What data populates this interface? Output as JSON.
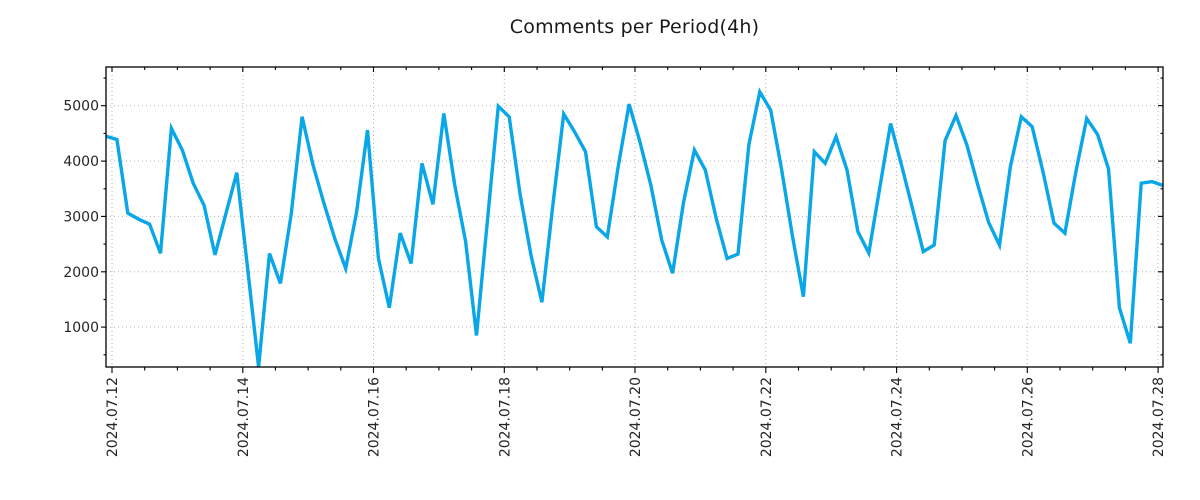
{
  "title": "Comments per Period(4h)",
  "chart_data": {
    "type": "line",
    "title": "Comments per Period(4h)",
    "xlabel": "",
    "ylabel": "",
    "legend": "none",
    "grid": {
      "show": true,
      "style": "dotted",
      "color": "#b3b3b3"
    },
    "x_tick_labels": [
      "2024.07.12",
      "2024.07.14",
      "2024.07.16",
      "2024.07.18",
      "2024.07.20",
      "2024.07.22",
      "2024.07.24",
      "2024.07.26",
      "2024.07.28"
    ],
    "x_axis": {
      "period_hours": 4,
      "points_per_major_tick": 12,
      "first_tick_index": 0.55,
      "minor_step_indices": 3
    },
    "y_axis": {
      "major_ticks": [
        1000,
        2000,
        3000,
        4000,
        5000
      ],
      "minor_step": 500,
      "ylim": [
        280,
        5700
      ]
    },
    "series": [
      {
        "name": "comments",
        "color": "#09a6e8",
        "values": [
          4450,
          4390,
          3060,
          2950,
          2860,
          2335,
          4590,
          4200,
          3600,
          3200,
          2305,
          3050,
          3790,
          2050,
          280,
          2330,
          1790,
          3040,
          4800,
          3930,
          3240,
          2600,
          2060,
          3080,
          4560,
          2245,
          1350,
          2700,
          2150,
          3960,
          3220,
          4860,
          3570,
          2550,
          850,
          2920,
          4990,
          4800,
          3400,
          2300,
          1450,
          3200,
          4850,
          4530,
          4170,
          2815,
          2630,
          3900,
          5030,
          4350,
          3570,
          2575,
          1975,
          3250,
          4200,
          3840,
          2965,
          2240,
          2320,
          4300,
          5250,
          4920,
          3850,
          2640,
          1550,
          4170,
          3960,
          4440,
          3840,
          2725,
          2340,
          3510,
          4680,
          3930,
          3150,
          2365,
          2485,
          4370,
          4825,
          4290,
          3570,
          2895,
          2480,
          3900,
          4800,
          4620,
          3800,
          2880,
          2700,
          3800,
          4770,
          4480,
          3860,
          1350,
          710,
          3600,
          3630,
          3560
        ]
      }
    ]
  },
  "style": {
    "line_color": "#09a6e8",
    "background": "#ffffff",
    "axis_color": "#000000",
    "grid_color": "#b3b3b3",
    "text_color": "#262626"
  }
}
